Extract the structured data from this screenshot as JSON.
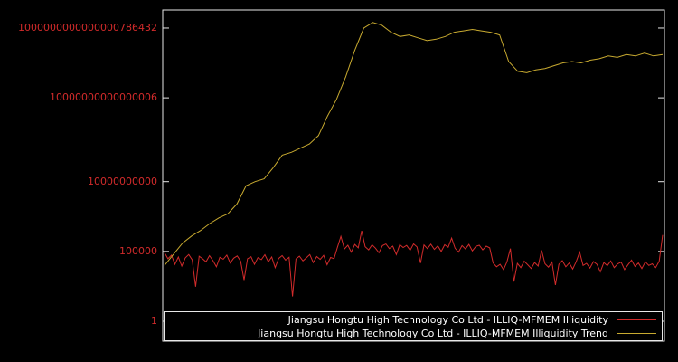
{
  "figure": {
    "background": "#000000",
    "border_color": "#e8e8e8",
    "tick_label_color": "#d22b2b"
  },
  "legend": {
    "position": "bottom",
    "entries": [
      {
        "label": "Jiangsu Hongtu High Technology Co Ltd - ILLIQ-MFMEM Illiquidity",
        "color": "#d22b2b"
      },
      {
        "label": "Jiangsu Hongtu High Technology Co Ltd - ILLIQ-MFMEM Illiquidity Trend",
        "color": "#c8aa30"
      }
    ]
  },
  "chart_data": {
    "type": "line",
    "title": "",
    "xlabel": "",
    "ylabel": "",
    "y_scale": "log",
    "grid": false,
    "ylim": [
      1,
      3e+21
    ],
    "y_ticks": [
      {
        "label": "1",
        "value": 1
      },
      {
        "label": "100000",
        "value": 100000
      },
      {
        "label": "10000000000",
        "value": 10000000000
      },
      {
        "label": "10000000000000006",
        "value": 1e+16
      },
      {
        "label": "1000000000000000786432",
        "value": 1e+21
      }
    ],
    "series": [
      {
        "name": "Jiangsu Hongtu High Technology Co Ltd - ILLIQ-MFMEM Illiquidity",
        "color": "#d22b2b",
        "values": [
          80000,
          30000,
          55000,
          12000,
          40000,
          9000,
          35000,
          60000,
          25000,
          300,
          45000,
          30000,
          18000,
          50000,
          22000,
          8000,
          38000,
          28000,
          55000,
          15000,
          33000,
          48000,
          20000,
          900,
          30000,
          42000,
          12000,
          36000,
          26000,
          58000,
          18000,
          40000,
          7000,
          32000,
          50000,
          24000,
          38000,
          60,
          29000,
          46000,
          21000,
          35000,
          60000,
          16000,
          43000,
          27000,
          52000,
          11000,
          37000,
          30000,
          200000,
          1200000,
          150000,
          280000,
          90000,
          320000,
          180000,
          3000000,
          220000,
          130000,
          300000,
          170000,
          80000,
          260000,
          340000,
          160000,
          240000,
          60000,
          310000,
          190000,
          270000,
          120000,
          350000,
          210000,
          15000,
          290000,
          160000,
          330000,
          140000,
          250000,
          100000,
          300000,
          200000,
          900000,
          170000,
          90000,
          260000,
          150000,
          320000,
          110000,
          230000,
          280000,
          130000,
          240000,
          180000,
          15000,
          8000,
          12000,
          5000,
          18000,
          160000,
          700,
          14000,
          7000,
          20000,
          11000,
          6000,
          16000,
          9000,
          120000,
          13000,
          7500,
          17000,
          400,
          12000,
          22000,
          8000,
          15000,
          5500,
          18000,
          90000,
          10000,
          14000,
          6500,
          19000,
          12000,
          3500,
          16000,
          9500,
          21000,
          7000,
          13000,
          17000,
          5000,
          11000,
          24000,
          8500,
          15000,
          6000,
          18000,
          10000,
          13000,
          7000,
          20000,
          1500000
        ]
      },
      {
        "name": "Jiangsu Hongtu High Technology Co Ltd - ILLIQ-MFMEM Illiquidity Trend",
        "color": "#c8aa30",
        "values": [
          10000.0,
          63000.0,
          400000.0,
          1300000.0,
          3200000.0,
          10000000.0,
          25000000.0,
          50000000.0,
          250000000.0,
          5000000000.0,
          10000000000.0,
          16000000000.0,
          100000000000.0,
          790000000000.0,
          1260000000000.0,
          2500000000000.0,
          5000000000000.0,
          20000000000000.0,
          500000000000000.0,
          7900000000000000.0,
          3.2e+17,
          2.5e+19,
          1e+21,
          2.5e+21,
          1.6e+21,
          5e+20,
          2.5e+20,
          3.2e+20,
          2e+20,
          1.26e+20,
          1.6e+20,
          2.5e+20,
          5e+20,
          6.3e+20,
          7.9e+20,
          6.3e+20,
          5e+20,
          3.2e+20,
          4e+18,
          7.9e+17,
          6.3e+17,
          1e+18,
          1.26e+18,
          2e+18,
          3.2e+18,
          4e+18,
          3.2e+18,
          5e+18,
          6.3e+18,
          1e+19,
          7.9e+18,
          1.26e+19,
          1e+19,
          1.6e+19,
          1e+19,
          1.26e+19
        ]
      }
    ]
  }
}
